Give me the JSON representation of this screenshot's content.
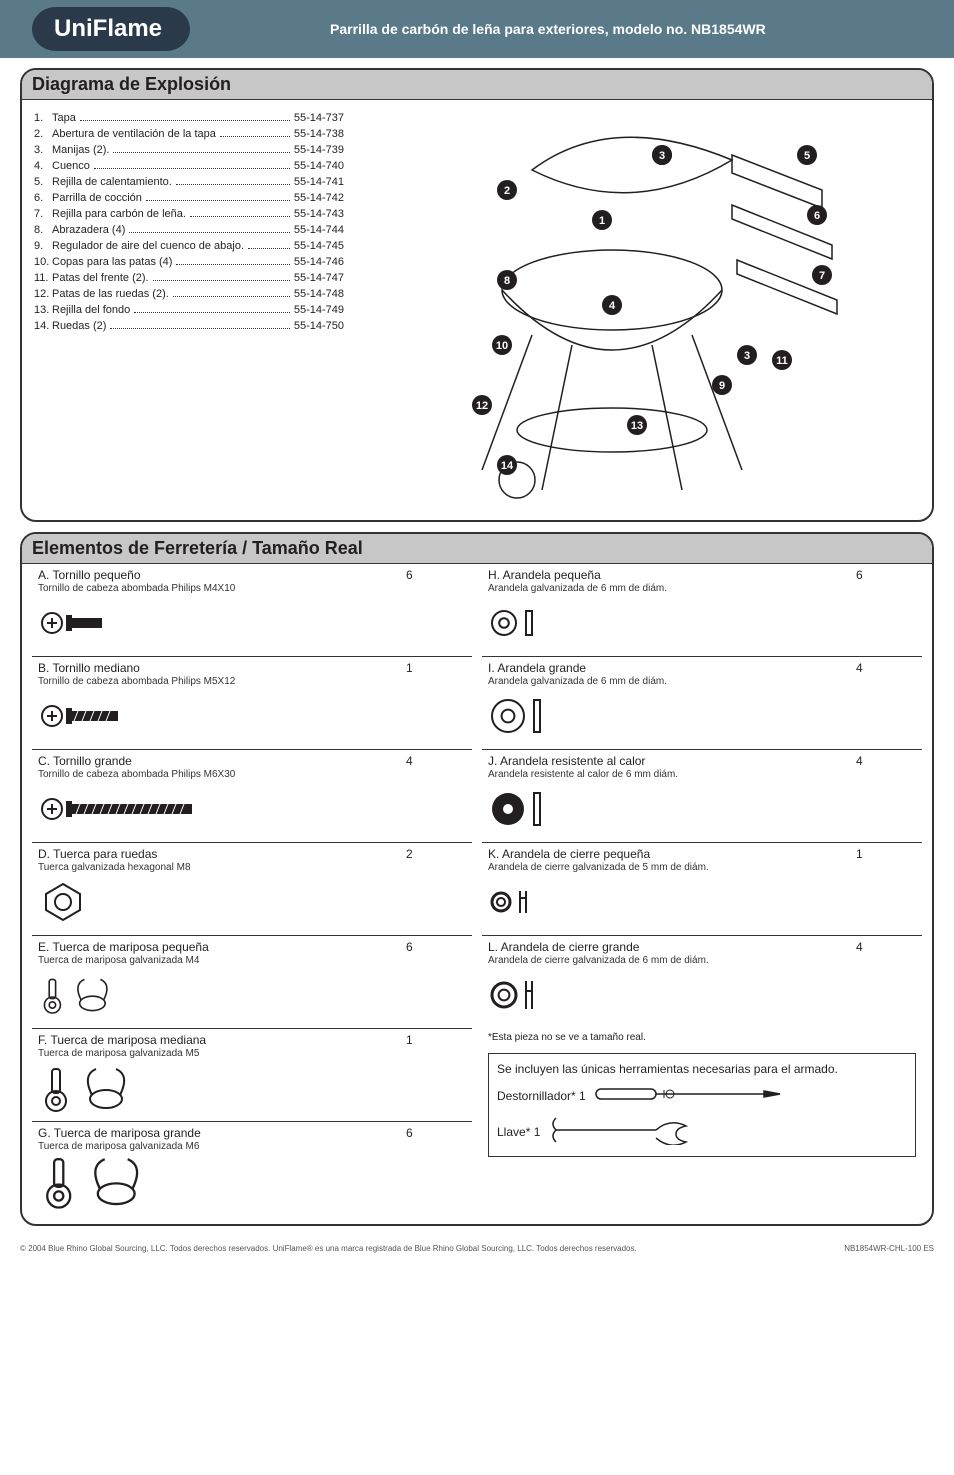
{
  "header": {
    "logo_text": "UniFlame",
    "title": "Parrilla de carbón de leña para exteriores, modelo no. NB1854WR"
  },
  "exploded": {
    "title": "Diagrama de Explosión",
    "parts": [
      {
        "n": "1.",
        "label": "Tapa",
        "sku": "55-14-737"
      },
      {
        "n": "2.",
        "label": "Abertura de ventilación de la tapa",
        "sku": "55-14-738"
      },
      {
        "n": "3.",
        "label": "Manijas (2).",
        "sku": "55-14-739"
      },
      {
        "n": "4.",
        "label": "Cuenco",
        "sku": "55-14-740"
      },
      {
        "n": "5.",
        "label": "Rejilla de calentamiento.",
        "sku": "55-14-741"
      },
      {
        "n": "6.",
        "label": "Parrilla de cocción",
        "sku": "55-14-742"
      },
      {
        "n": "7.",
        "label": "Rejilla para carbón de leña.",
        "sku": "55-14-743"
      },
      {
        "n": "8.",
        "label": "Abrazadera (4)",
        "sku": "55-14-744"
      },
      {
        "n": "9.",
        "label": "Regulador de aire del cuenco de abajo.",
        "sku": "55-14-745"
      },
      {
        "n": "10.",
        "label": "Copas para las patas (4)",
        "sku": "55-14-746"
      },
      {
        "n": "11.",
        "label": "Patas del frente (2).",
        "sku": "55-14-747"
      },
      {
        "n": "12.",
        "label": "Patas de las ruedas (2).",
        "sku": "55-14-748"
      },
      {
        "n": "13.",
        "label": "Rejilla del fondo",
        "sku": "55-14-749"
      },
      {
        "n": "14.",
        "label": "Ruedas (2)",
        "sku": "55-14-750"
      }
    ],
    "callouts": [
      "1",
      "2",
      "3",
      "3",
      "4",
      "5",
      "6",
      "7",
      "8",
      "9",
      "10",
      "11",
      "12",
      "13",
      "14"
    ]
  },
  "hardware": {
    "title": "Elementos de Ferretería / Tamaño Real",
    "left": [
      {
        "key": "A.",
        "name": "Tornillo pequeño",
        "sub": "Tornillo de cabeza abombada Philips M4X10",
        "qty": "6",
        "icon": "screw-short"
      },
      {
        "key": "B.",
        "name": "Tornillo mediano",
        "sub": "Tornillo de cabeza abombada Philips M5X12",
        "qty": "1",
        "icon": "screw-med"
      },
      {
        "key": "C.",
        "name": "Tornillo grande",
        "sub": "Tornillo de cabeza abombada Philips M6X30",
        "qty": "4",
        "icon": "screw-long"
      },
      {
        "key": "D.",
        "name": "Tuerca para ruedas",
        "sub": "Tuerca galvanizada hexagonal M8",
        "qty": "2",
        "icon": "hexnut"
      },
      {
        "key": "E.",
        "name": "Tuerca de mariposa pequeña",
        "sub": "Tuerca de mariposa galvanizada M4",
        "qty": "6",
        "icon": "wingnut-sm"
      },
      {
        "key": "F.",
        "name": "Tuerca de mariposa mediana",
        "sub": "Tuerca de mariposa galvanizada M5",
        "qty": "1",
        "icon": "wingnut-md"
      },
      {
        "key": "G.",
        "name": "Tuerca de mariposa grande",
        "sub": "Tuerca de mariposa galvanizada M6",
        "qty": "6",
        "icon": "wingnut-lg"
      }
    ],
    "right": [
      {
        "key": "H.",
        "name": "Arandela pequeña",
        "sub": "Arandela galvanizada de 6 mm de diám.",
        "qty": "6",
        "icon": "washer-sm"
      },
      {
        "key": "I.",
        "name": "Arandela grande",
        "sub": "Arandela galvanizada de 6 mm de diám.",
        "qty": "4",
        "icon": "washer-lg"
      },
      {
        "key": "J.",
        "name": "Arandela resistente al calor",
        "sub": "Arandela resistente al calor de 6 mm diám.",
        "qty": "4",
        "icon": "washer-heat"
      },
      {
        "key": "K.",
        "name": "Arandela de cierre pequeña",
        "sub": "Arandela de cierre galvanizada de 5 mm de diám.",
        "qty": "1",
        "icon": "lockwasher-sm"
      },
      {
        "key": "L.",
        "name": "Arandela de cierre grande",
        "sub": "Arandela de cierre galvanizada de 6 mm de diám.",
        "qty": "4",
        "icon": "lockwasher-lg"
      }
    ],
    "note": "*Esta pieza no se ve a tamaño real.",
    "tools": {
      "intro": "Se incluyen las únicas herramientas necesarias para el armado.",
      "items": [
        {
          "label": "Destornillador*  1",
          "icon": "screwdriver"
        },
        {
          "label": "Llave*  1",
          "icon": "wrench"
        }
      ]
    }
  },
  "footer": {
    "left": "© 2004 Blue Rhino Global Sourcing, LLC. Todos derechos reservados.    UniFlame® es una marca registrada de Blue Rhino Global Sourcing, LLC. Todos derechos reservados.",
    "right": "NB1854WR-CHL-100 ES"
  },
  "colors": {
    "header_bg": "#5a7a8a",
    "logo_bg": "#2a3a4a",
    "titlebar": "#c7c7c7",
    "ink": "#231f20"
  }
}
